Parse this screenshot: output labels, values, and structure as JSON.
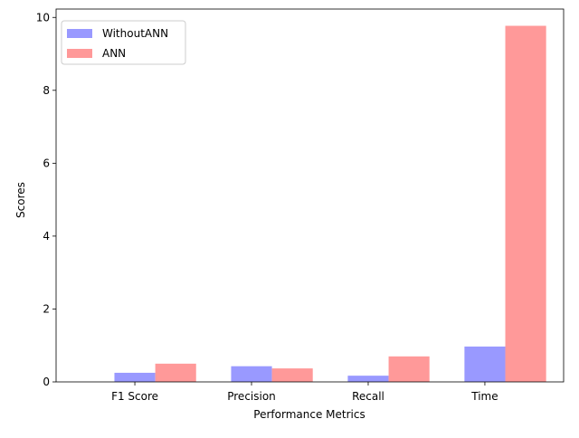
{
  "chart_data": {
    "type": "bar",
    "title": "",
    "xlabel": "Performance Metrics",
    "ylabel": "Scores",
    "categories": [
      "F1 Score",
      "Precision",
      "Recall",
      "Time"
    ],
    "series": [
      {
        "name": "WithoutANN",
        "values": [
          0.25,
          0.43,
          0.17,
          0.97
        ],
        "color": "#9999ff"
      },
      {
        "name": "ANN",
        "values": [
          0.5,
          0.37,
          0.7,
          9.77
        ],
        "color": "#ff9999"
      }
    ],
    "ylim": [
      0,
      10.23
    ],
    "yticks": [
      0,
      2,
      4,
      6,
      8,
      10
    ],
    "grid": false,
    "legend": "top-left"
  }
}
